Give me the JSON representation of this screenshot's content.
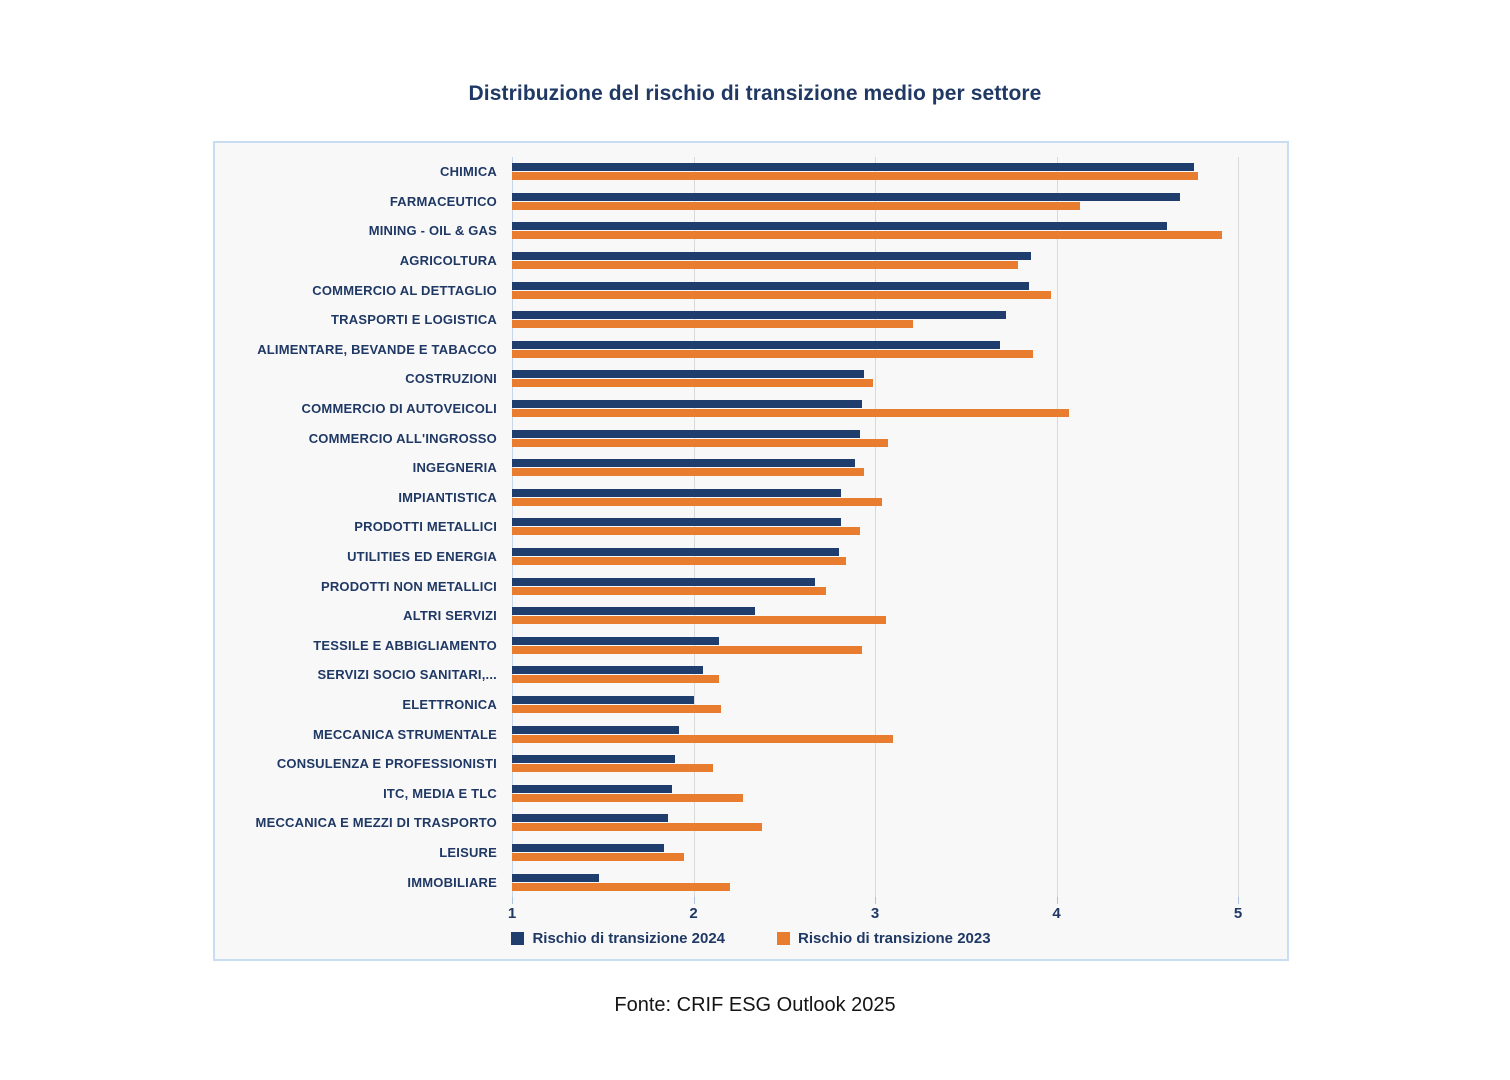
{
  "chart_data": {
    "type": "bar",
    "orientation": "horizontal",
    "title": "Distribuzione del rischio di transizione medio per settore",
    "categories": [
      "CHIMICA",
      "FARMACEUTICO",
      "MINING - OIL & GAS",
      "AGRICOLTURA",
      "COMMERCIO AL DETTAGLIO",
      "TRASPORTI E LOGISTICA",
      "ALIMENTARE, BEVANDE E TABACCO",
      "COSTRUZIONI",
      "COMMERCIO DI AUTOVEICOLI",
      "COMMERCIO ALL'INGROSSO",
      "INGEGNERIA",
      "IMPIANTISTICA",
      "PRODOTTI METALLICI",
      "UTILITIES ED ENERGIA",
      "PRODOTTI NON METALLICI",
      "ALTRI SERVIZI",
      "TESSILE E ABBIGLIAMENTO",
      "SERVIZI SOCIO SANITARI,...",
      "ELETTRONICA",
      "MECCANICA STRUMENTALE",
      "CONSULENZA E PROFESSIONISTI",
      "ITC, MEDIA E TLC",
      "MECCANICA E MEZZI DI TRASPORTO",
      "LEISURE",
      "IMMOBILIARE"
    ],
    "series": [
      {
        "name": "Rischio di transizione 2024",
        "color": "#1F3D6D",
        "values": [
          4.76,
          4.68,
          4.61,
          3.86,
          3.85,
          3.72,
          3.69,
          2.94,
          2.93,
          2.92,
          2.89,
          2.81,
          2.81,
          2.8,
          2.67,
          2.34,
          2.14,
          2.05,
          2.0,
          1.92,
          1.9,
          1.88,
          1.86,
          1.84,
          1.48
        ]
      },
      {
        "name": "Rischio di transizione 2023",
        "color": "#E87D30",
        "values": [
          4.78,
          4.13,
          4.91,
          3.79,
          3.97,
          3.21,
          3.87,
          2.99,
          4.07,
          3.07,
          2.94,
          3.04,
          2.92,
          2.84,
          2.73,
          3.06,
          2.93,
          2.14,
          2.15,
          3.1,
          2.11,
          2.27,
          2.38,
          1.95,
          2.2
        ]
      }
    ],
    "xlim": [
      1,
      5
    ],
    "xticks": [
      1,
      2,
      3,
      4,
      5
    ],
    "grid": "vertical",
    "legend_position": "bottom"
  },
  "footer": {
    "source": "Fonte: CRIF ESG Outlook 2025"
  },
  "colors": {
    "title_text": "#1F3864",
    "axis_text": "#1F3864",
    "label_text": "#1F3864",
    "panel_border": "#C9DCF2",
    "panel_background": "#F8F8F9",
    "gridline": "#D9D9D9",
    "series_2024": "#1F3D6D",
    "series_2023": "#E87D30"
  }
}
